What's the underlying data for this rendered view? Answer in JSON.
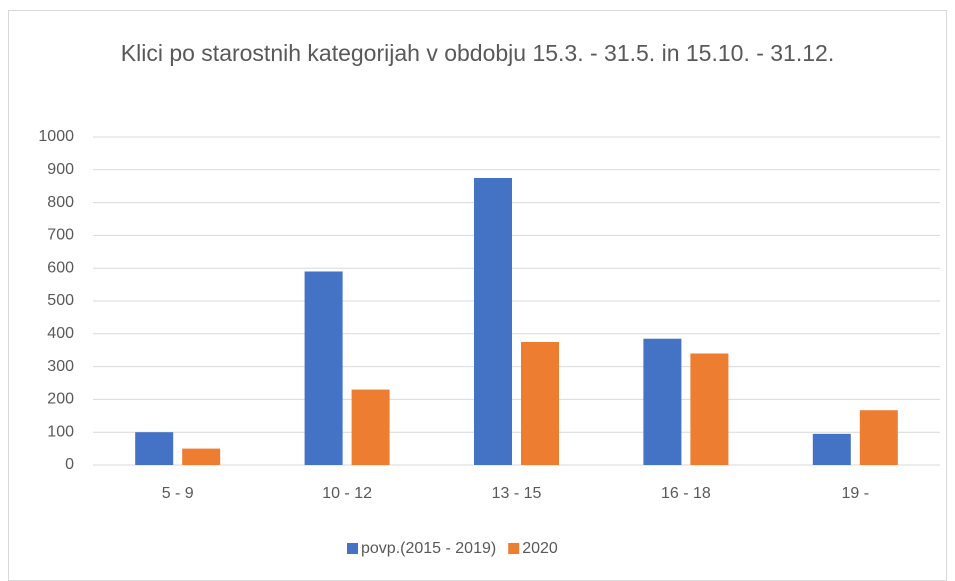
{
  "chart_data": {
    "type": "bar",
    "title": "Klici po starostnih kategorijah v obdobju 15.3. - 31.5. in 15.10. - 31.12.",
    "categories": [
      "5 - 9",
      "10 - 12",
      "13 - 15",
      "16 - 18",
      "19 -"
    ],
    "series": [
      {
        "name": "povp.(2015 - 2019)",
        "color": "#4472c4",
        "values": [
          100,
          590,
          875,
          385,
          95
        ]
      },
      {
        "name": "2020",
        "color": "#ed7d31",
        "values": [
          50,
          230,
          375,
          340,
          167
        ]
      }
    ],
    "ylim": [
      0,
      1000
    ],
    "yticks": [
      0,
      100,
      200,
      300,
      400,
      500,
      600,
      700,
      800,
      900,
      1000
    ],
    "grid": true,
    "legend": "bottom"
  }
}
